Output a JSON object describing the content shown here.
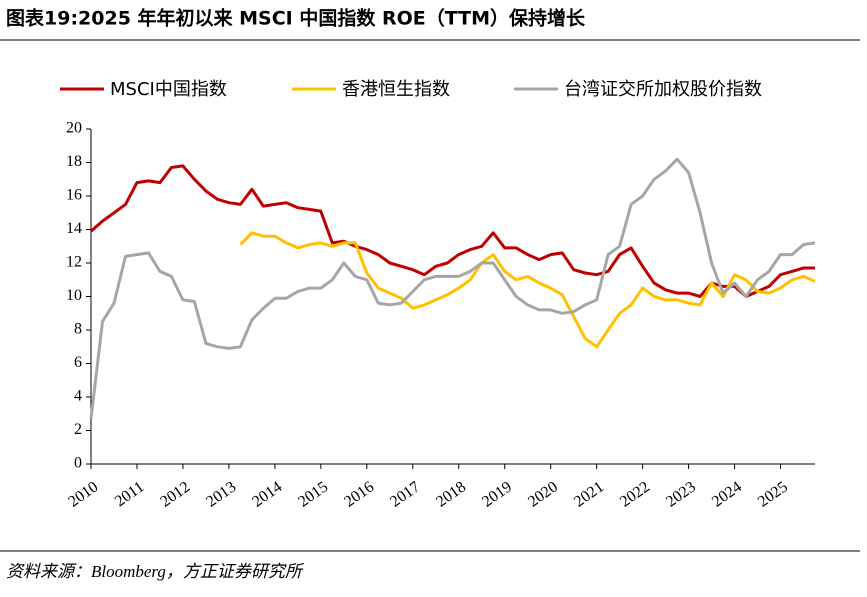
{
  "chart_data": {
    "type": "line",
    "title": "图表19:2025 年年初以来 MSCI 中国指数 ROE（TTM）保持增长",
    "source": "资料来源：Bloomberg，方正证券研究所",
    "x": [
      2010,
      2010.25,
      2010.5,
      2010.75,
      2011,
      2011.25,
      2011.5,
      2011.75,
      2012,
      2012.25,
      2012.5,
      2012.75,
      2013,
      2013.25,
      2013.5,
      2013.75,
      2014,
      2014.25,
      2014.5,
      2014.75,
      2015,
      2015.25,
      2015.5,
      2015.75,
      2016,
      2016.25,
      2016.5,
      2016.75,
      2017,
      2017.25,
      2017.5,
      2017.75,
      2018,
      2018.25,
      2018.5,
      2018.75,
      2019,
      2019.25,
      2019.5,
      2019.75,
      2020,
      2020.25,
      2020.5,
      2020.75,
      2021,
      2021.25,
      2021.5,
      2021.75,
      2022,
      2022.25,
      2022.5,
      2022.75,
      2023,
      2023.25,
      2023.5,
      2023.75,
      2024,
      2024.25,
      2024.5,
      2024.75,
      2025,
      2025.25,
      2025.5,
      2025.75
    ],
    "series": [
      {
        "name": "MSCI中国指数",
        "color": "#c00000",
        "values": [
          13.9,
          14.5,
          15.0,
          15.5,
          16.8,
          16.9,
          16.8,
          17.7,
          17.8,
          17.0,
          16.3,
          15.8,
          15.6,
          15.5,
          16.4,
          15.4,
          15.5,
          15.6,
          15.3,
          15.2,
          15.1,
          13.2,
          13.3,
          13.0,
          12.8,
          12.5,
          12.0,
          11.8,
          11.6,
          11.3,
          11.8,
          12.0,
          12.5,
          12.8,
          13.0,
          13.8,
          12.9,
          12.9,
          12.5,
          12.2,
          12.5,
          12.6,
          11.6,
          11.4,
          11.3,
          11.5,
          12.5,
          12.9,
          11.8,
          10.8,
          10.4,
          10.2,
          10.2,
          10.0,
          10.8,
          10.6,
          10.6,
          10.0,
          10.3,
          10.6,
          11.3,
          11.5,
          11.7,
          11.7
        ]
      },
      {
        "name": "香港恒生指数",
        "color": "#ffc000",
        "values": [
          null,
          null,
          null,
          null,
          null,
          null,
          null,
          null,
          null,
          null,
          null,
          null,
          null,
          13.1,
          13.8,
          13.6,
          13.6,
          13.2,
          12.9,
          13.1,
          13.2,
          13.0,
          13.2,
          13.2,
          11.4,
          10.5,
          10.2,
          9.9,
          9.3,
          9.5,
          9.8,
          10.1,
          10.5,
          11.0,
          12.0,
          12.5,
          11.5,
          11.0,
          11.2,
          10.8,
          10.5,
          10.1,
          8.8,
          7.5,
          7.0,
          8.0,
          9.0,
          9.5,
          10.5,
          10.0,
          9.8,
          9.8,
          9.6,
          9.5,
          10.8,
          10.0,
          11.3,
          11.0,
          10.3,
          10.2,
          10.5,
          11.0,
          11.2,
          10.9
        ]
      },
      {
        "name": "台湾证交所加权股价指数",
        "color": "#a6a6a6",
        "values": [
          2.7,
          8.5,
          9.6,
          12.4,
          12.5,
          12.6,
          11.5,
          11.2,
          9.8,
          9.7,
          7.2,
          7.0,
          6.9,
          7.0,
          8.6,
          9.3,
          9.9,
          9.9,
          10.3,
          10.5,
          10.5,
          11.0,
          12.0,
          11.2,
          11.0,
          9.6,
          9.5,
          9.6,
          10.3,
          11.0,
          11.2,
          11.2,
          11.2,
          11.5,
          12.0,
          12.0,
          11.0,
          10.0,
          9.5,
          9.2,
          9.2,
          9.0,
          9.1,
          9.5,
          9.8,
          12.5,
          13.0,
          15.5,
          16.0,
          17.0,
          17.5,
          18.2,
          17.4,
          15.0,
          12.0,
          10.2,
          10.8,
          10.0,
          11.0,
          11.5,
          12.5,
          12.5,
          13.1,
          13.2
        ]
      }
    ],
    "xlim": [
      2010,
      2025.75
    ],
    "xticks": [
      2010,
      2011,
      2012,
      2013,
      2014,
      2015,
      2016,
      2017,
      2018,
      2019,
      2020,
      2021,
      2022,
      2023,
      2024,
      2025
    ],
    "ylim": [
      0,
      20
    ],
    "yticks": [
      0,
      2,
      4,
      6,
      8,
      10,
      12,
      14,
      16,
      18,
      20
    ],
    "legend": "top"
  }
}
